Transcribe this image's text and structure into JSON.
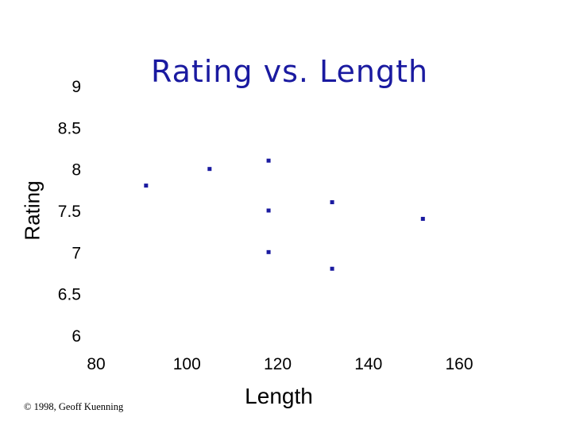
{
  "chart_data": {
    "type": "scatter",
    "title": "Rating vs. Length",
    "xlabel": "Length",
    "ylabel": "Rating",
    "xlim": [
      80,
      160
    ],
    "ylim": [
      6,
      9
    ],
    "xticks": [
      "80",
      "100",
      "120",
      "140",
      "160"
    ],
    "yticks": [
      "6",
      "6.5",
      "7",
      "7.5",
      "8",
      "8.5",
      "9"
    ],
    "grid": false,
    "marker_color": "#1a1aa0",
    "series": [
      {
        "points": [
          {
            "x": 91,
            "y": 7.8
          },
          {
            "x": 105,
            "y": 8.0
          },
          {
            "x": 118,
            "y": 8.1
          },
          {
            "x": 118,
            "y": 7.5
          },
          {
            "x": 118,
            "y": 7.0
          },
          {
            "x": 132,
            "y": 7.6
          },
          {
            "x": 132,
            "y": 6.8
          },
          {
            "x": 152,
            "y": 7.4
          }
        ]
      }
    ]
  },
  "footer": {
    "copyright": "© 1998, Geoff Kuenning"
  }
}
